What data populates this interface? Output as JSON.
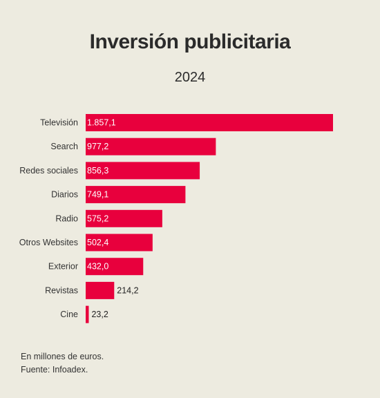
{
  "title": "Inversión publicitaria",
  "subtitle": "2024",
  "chart_data": {
    "type": "bar",
    "orientation": "horizontal",
    "categories": [
      "Televisión",
      "Search",
      "Redes sociales",
      "Diarios",
      "Radio",
      "Otros Websites",
      "Exterior",
      "Revistas",
      "Cine"
    ],
    "values": [
      1857.1,
      977.2,
      856.3,
      749.1,
      575.2,
      502.4,
      432.0,
      214.2,
      23.2
    ],
    "value_labels": [
      "1.857,1",
      "977,2",
      "856,3",
      "749,1",
      "575,2",
      "502,4",
      "432,0",
      "214,2",
      "23,2"
    ],
    "xlim": [
      0,
      1857.1
    ],
    "grid": false,
    "legend": "none",
    "bar_color": "#e8003d"
  },
  "notes": {
    "units": "En millones de euros.",
    "source": "Fuente: Infoadex."
  }
}
